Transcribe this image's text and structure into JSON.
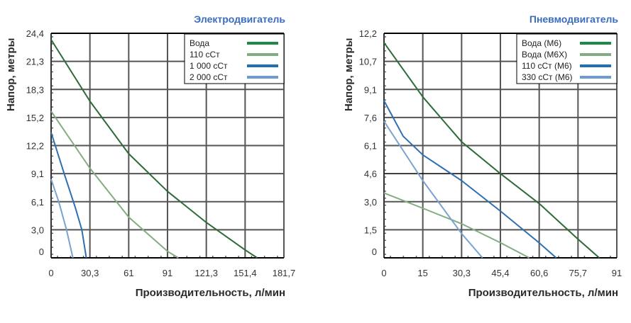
{
  "chart_data": [
    {
      "type": "line",
      "title": "Электродвигатель",
      "xlabel": "Производительность, л/мин",
      "ylabel": "Напор, метры",
      "x_ticks": [
        0,
        30.3,
        61,
        91,
        121.3,
        151.4,
        181.7
      ],
      "x_tick_labels": [
        "0",
        "30,3",
        "61",
        "91",
        "121,3",
        "151,4",
        "181,7"
      ],
      "y_ticks": [
        0,
        3.0,
        6.1,
        9.1,
        12.2,
        15.2,
        18.3,
        21.3,
        24.4
      ],
      "y_tick_labels": [
        "0",
        "3,0",
        "6,1",
        "9,1",
        "12,2",
        "15,2",
        "18,3",
        "21,3",
        "24,4"
      ],
      "xlim": [
        0,
        181.7
      ],
      "ylim": [
        0,
        24.4
      ],
      "grid": true,
      "legend_position": "top-right",
      "series": [
        {
          "name": "Вода",
          "color": "#2e6b3a",
          "legend_color": "#1f8a45",
          "points": [
            [
              0,
              23.7
            ],
            [
              30.3,
              17.0
            ],
            [
              61,
              11.3
            ],
            [
              91,
              7.2
            ],
            [
              121.3,
              3.8
            ],
            [
              151.4,
              0.85
            ],
            [
              160.8,
              0
            ]
          ]
        },
        {
          "name": "110 сСт",
          "color": "#82ad80",
          "legend_color": "#82ad80",
          "points": [
            [
              0,
              15.9
            ],
            [
              30.3,
              9.7
            ],
            [
              61,
              4.4
            ],
            [
              91,
              0.7
            ],
            [
              99.4,
              0
            ]
          ]
        },
        {
          "name": "1 000 сСт",
          "color": "#2f6fb0",
          "legend_color": "#2170b5",
          "points": [
            [
              0,
              13.6
            ],
            [
              10,
              9.2
            ],
            [
              19,
              5.4
            ],
            [
              24,
              3.0
            ],
            [
              27.5,
              0
            ]
          ]
        },
        {
          "name": "2 000 сСт",
          "color": "#7aa3d0",
          "legend_color": "#6b9bd0",
          "points": [
            [
              0,
              8.5
            ],
            [
              6,
              6.1
            ],
            [
              12,
              3.0
            ],
            [
              17,
              0
            ]
          ]
        }
      ]
    },
    {
      "type": "line",
      "title": "Пневмодвигатель",
      "xlabel": "Производительность, л/мин",
      "ylabel": "Напор, метры",
      "x_ticks": [
        0,
        15,
        30.3,
        45.4,
        60.6,
        75.7,
        91
      ],
      "x_tick_labels": [
        "0",
        "15",
        "30,3",
        "45,4",
        "60,6",
        "75,7",
        "91"
      ],
      "y_ticks": [
        0,
        1.5,
        3.0,
        4.6,
        6.1,
        7.6,
        9.1,
        10.7,
        12.2
      ],
      "y_tick_labels": [
        "0",
        "1,5",
        "3,0",
        "4,6",
        "6,1",
        "7,6",
        "9,1",
        "10,7",
        "12,2"
      ],
      "xlim": [
        0,
        91
      ],
      "ylim": [
        0,
        12.2
      ],
      "grid": true,
      "highlight_y": 4.6,
      "legend_position": "top-right",
      "series": [
        {
          "name": "Вода (М6)",
          "color": "#2e6b3a",
          "legend_color": "#1f8a45",
          "points": [
            [
              0,
              11.7
            ],
            [
              15,
              8.7
            ],
            [
              30.3,
              6.3
            ],
            [
              45.4,
              4.6
            ],
            [
              60.6,
              2.9
            ],
            [
              75.7,
              1.0
            ],
            [
              84.1,
              0
            ]
          ]
        },
        {
          "name": "Вода (М6Х)",
          "color": "#82ad80",
          "legend_color": "#82ad80",
          "points": [
            [
              0,
              3.5
            ],
            [
              15,
              2.65
            ],
            [
              30.3,
              1.82
            ],
            [
              45.4,
              0.81
            ],
            [
              56.7,
              0
            ]
          ]
        },
        {
          "name": "110 сСт (М6)",
          "color": "#2f6fb0",
          "legend_color": "#2170b5",
          "points": [
            [
              0,
              8.5
            ],
            [
              7.4,
              6.6
            ],
            [
              15,
              5.6
            ],
            [
              30.3,
              4.2
            ],
            [
              45.4,
              2.5
            ],
            [
              60.6,
              0.8
            ],
            [
              67.2,
              0
            ]
          ]
        },
        {
          "name": "330 сСт (М6)",
          "color": "#7aa3d0",
          "legend_color": "#6b9bd0",
          "points": [
            [
              0,
              7.4
            ],
            [
              15,
              4.2
            ],
            [
              30.3,
              1.3
            ],
            [
              38.4,
              0
            ]
          ]
        }
      ]
    }
  ]
}
